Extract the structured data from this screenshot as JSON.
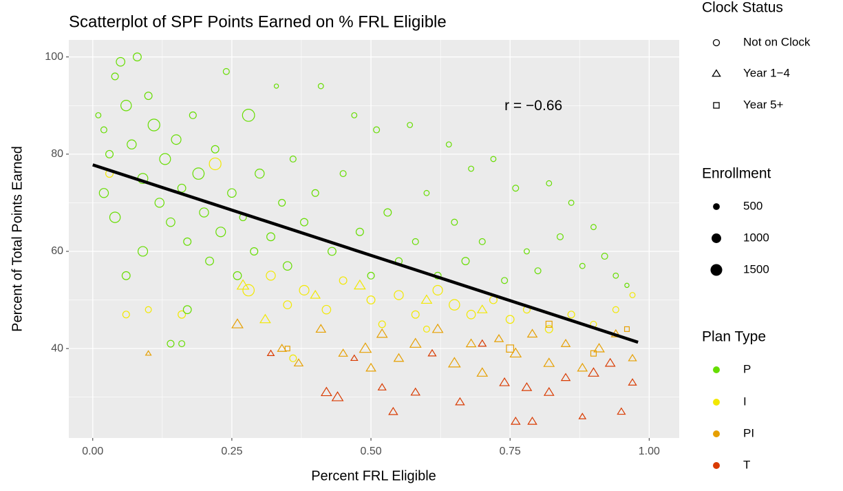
{
  "chart_data": {
    "type": "scatter",
    "title": "Scatterplot of SPF Points Earned on % FRL Eligible",
    "x_label": "Percent FRL Eligible",
    "y_label": "Percent of Total Points Earned",
    "xlim": [
      -0.043,
      1.054
    ],
    "ylim": [
      21.6,
      103.5
    ],
    "xticks": [
      {
        "value": 0,
        "label": "0.00"
      },
      {
        "value": 0.25,
        "label": "0.25"
      },
      {
        "value": 0.5,
        "label": "0.50"
      },
      {
        "value": 0.75,
        "label": "0.75"
      },
      {
        "value": 1,
        "label": "1.00"
      }
    ],
    "yticks": [
      40,
      60,
      80,
      100
    ],
    "x_minor_ticks": [
      0.125,
      0.375,
      0.625,
      0.875
    ],
    "y_minor_ticks": [
      30,
      50,
      70,
      90
    ],
    "grid": true,
    "fit": {
      "x": [
        0,
        0.98
      ],
      "y": [
        77.8,
        41.3
      ],
      "color": "#000000"
    },
    "annotation": {
      "text": "r =  −0.66",
      "x": 0.792,
      "y": 89.8
    },
    "legends": [
      {
        "title": "Clock Status",
        "entries": [
          "Not on Clock",
          "Year 1−4",
          "Year 5+"
        ]
      },
      {
        "title": "Enrollment",
        "values": [
          500,
          1000,
          1500
        ]
      },
      {
        "title": "Plan Type",
        "entries": [
          "P",
          "I",
          "PI",
          "T"
        ],
        "colors": [
          "#66dd00",
          "#f2e800",
          "#e69f00",
          "#d93a00"
        ]
      }
    ],
    "series": [
      {
        "plan": 1,
        "shape": 0,
        "x": [
          0.03,
          0.06,
          0.1,
          0.16,
          0.22,
          0.28,
          0.32,
          0.35,
          0.38,
          0.42,
          0.45,
          0.5,
          0.52,
          0.55,
          0.58,
          0.62,
          0.65,
          0.68,
          0.72,
          0.75,
          0.78,
          0.82,
          0.86,
          0.9,
          0.94,
          0.97,
          0.36,
          0.6
        ],
        "values": [
          76,
          47,
          48,
          47,
          78,
          52,
          55,
          49,
          52,
          48,
          54,
          50,
          45,
          51,
          47,
          52,
          49,
          47,
          50,
          46,
          48,
          44,
          47,
          45,
          48,
          51,
          38,
          44
        ],
        "sizes": [
          600,
          500,
          400,
          600,
          1500,
          1400,
          900,
          700,
          1000,
          800,
          600,
          700,
          500,
          900,
          600,
          1000,
          1200,
          800,
          600,
          700,
          500,
          600,
          500,
          400,
          400,
          300,
          500,
          400
        ]
      },
      {
        "plan": 1,
        "shape": 1,
        "x": [
          0.27,
          0.31,
          0.4,
          0.48,
          0.6,
          0.7
        ],
        "values": [
          53,
          46,
          51,
          53,
          50,
          48
        ],
        "sizes": [
          900,
          700,
          600,
          800,
          700,
          600
        ]
      },
      {
        "plan": 2,
        "shape": 1,
        "x": [
          0.26,
          0.34,
          0.37,
          0.41,
          0.45,
          0.49,
          0.52,
          0.55,
          0.58,
          0.62,
          0.65,
          0.68,
          0.7,
          0.73,
          0.76,
          0.79,
          0.82,
          0.85,
          0.88,
          0.91,
          0.94,
          0.97,
          0.1,
          0.5
        ],
        "values": [
          45,
          40,
          37,
          44,
          39,
          40,
          43,
          38,
          41,
          44,
          37,
          41,
          35,
          42,
          39,
          43,
          37,
          41,
          36,
          40,
          43,
          38,
          39,
          36
        ],
        "sizes": [
          800,
          500,
          500,
          600,
          500,
          900,
          700,
          600,
          800,
          700,
          900,
          600,
          700,
          500,
          800,
          600,
          700,
          500,
          600,
          700,
          500,
          400,
          200,
          600
        ]
      },
      {
        "plan": 2,
        "shape": 2,
        "x": [
          0.35,
          0.75,
          0.82,
          0.9,
          0.96
        ],
        "values": [
          40,
          40,
          45,
          39,
          44
        ],
        "sizes": [
          300,
          700,
          500,
          400,
          300
        ]
      },
      {
        "plan": 0,
        "shape": 0,
        "x": [
          0.01,
          0.02,
          0.03,
          0.04,
          0.05,
          0.06,
          0.07,
          0.08,
          0.09,
          0.1,
          0.11,
          0.12,
          0.13,
          0.14,
          0.15,
          0.16,
          0.17,
          0.18,
          0.19,
          0.2,
          0.21,
          0.22,
          0.23,
          0.24,
          0.25,
          0.26,
          0.27,
          0.28,
          0.29,
          0.3,
          0.32,
          0.33,
          0.34,
          0.35,
          0.36,
          0.38,
          0.4,
          0.41,
          0.43,
          0.45,
          0.47,
          0.48,
          0.5,
          0.51,
          0.53,
          0.55,
          0.57,
          0.58,
          0.6,
          0.62,
          0.64,
          0.65,
          0.67,
          0.68,
          0.7,
          0.72,
          0.74,
          0.76,
          0.78,
          0.8,
          0.82,
          0.84,
          0.86,
          0.88,
          0.9,
          0.92,
          0.94,
          0.96,
          0.06,
          0.09,
          0.14,
          0.16,
          0.02,
          0.04,
          0.17
        ],
        "values": [
          88,
          85,
          80,
          96,
          99,
          90,
          82,
          100,
          75,
          92,
          86,
          70,
          79,
          66,
          83,
          73,
          62,
          88,
          76,
          68,
          58,
          81,
          64,
          97,
          72,
          55,
          67,
          88,
          60,
          76,
          63,
          94,
          70,
          57,
          79,
          66,
          72,
          94,
          60,
          76,
          88,
          64,
          55,
          85,
          68,
          58,
          86,
          62,
          72,
          55,
          82,
          66,
          58,
          77,
          62,
          79,
          54,
          73,
          60,
          56,
          74,
          63,
          70,
          57,
          65,
          59,
          55,
          53,
          55,
          60,
          41,
          41,
          72,
          67,
          48
        ],
        "sizes": [
          300,
          400,
          600,
          500,
          800,
          1200,
          900,
          700,
          1100,
          600,
          1500,
          900,
          1300,
          800,
          1000,
          700,
          600,
          500,
          1400,
          900,
          700,
          600,
          1000,
          400,
          800,
          700,
          500,
          1600,
          600,
          900,
          700,
          200,
          500,
          800,
          400,
          600,
          500,
          300,
          700,
          400,
          300,
          600,
          500,
          400,
          600,
          500,
          300,
          400,
          300,
          500,
          300,
          400,
          600,
          300,
          400,
          300,
          400,
          400,
          300,
          400,
          300,
          400,
          300,
          300,
          300,
          400,
          300,
          200,
          700,
          1000,
          500,
          400,
          900,
          1200,
          700
        ]
      },
      {
        "plan": 3,
        "shape": 1,
        "x": [
          0.32,
          0.42,
          0.44,
          0.47,
          0.52,
          0.54,
          0.58,
          0.61,
          0.66,
          0.7,
          0.74,
          0.76,
          0.79,
          0.82,
          0.85,
          0.88,
          0.9,
          0.93,
          0.95,
          0.97,
          0.78
        ],
        "values": [
          39,
          31,
          30,
          38,
          32,
          27,
          31,
          39,
          29,
          41,
          33,
          25,
          25,
          31,
          34,
          26,
          35,
          37,
          27,
          33,
          32
        ],
        "sizes": [
          300,
          700,
          800,
          300,
          400,
          500,
          500,
          400,
          500,
          400,
          600,
          500,
          500,
          600,
          500,
          300,
          700,
          600,
          400,
          400,
          600
        ]
      }
    ]
  }
}
